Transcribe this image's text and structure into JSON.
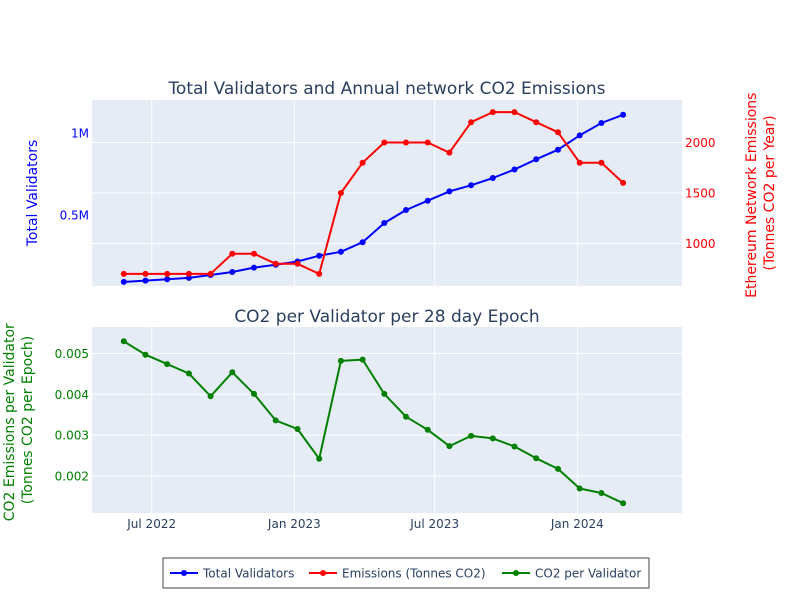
{
  "chart_data": [
    {
      "type": "line",
      "title": "Total Validators and Annual network CO2 Emissions",
      "x_axis": {
        "type": "date",
        "range": [
          "2022-04-15",
          "2024-05-15"
        ],
        "ticks": [
          {
            "value": "2022-07-01",
            "label": "Jul 2022"
          },
          {
            "value": "2023-01-01",
            "label": "Jan 2023"
          },
          {
            "value": "2023-07-01",
            "label": "Jul 2023"
          },
          {
            "value": "2024-01-01",
            "label": "Jan 2024"
          }
        ]
      },
      "y_left": {
        "label": "Total Validators",
        "color": "#0000ff",
        "range": [
          70000,
          1200000
        ],
        "ticks": [
          {
            "value": 500000,
            "label": "0.5M"
          },
          {
            "value": 1000000,
            "label": "1M"
          }
        ]
      },
      "y_right": {
        "label_lines": [
          "Ethereum Network Emissions",
          "(Tonnes CO2 per Year)"
        ],
        "color": "#ff0000",
        "range": [
          580,
          2420
        ],
        "ticks": [
          {
            "value": 1000,
            "label": "1000"
          },
          {
            "value": 1500,
            "label": "1500"
          },
          {
            "value": 2000,
            "label": "2000"
          }
        ]
      },
      "grid": true,
      "series": [
        {
          "name": "Total Validators",
          "axis": "left",
          "color": "#0000ff",
          "x": [
            "2022-05-26",
            "2022-06-23",
            "2022-07-21",
            "2022-08-18",
            "2022-09-15",
            "2022-10-13",
            "2022-11-10",
            "2022-12-08",
            "2023-01-05",
            "2023-02-02",
            "2023-03-02",
            "2023-03-30",
            "2023-04-27",
            "2023-05-25",
            "2023-06-22",
            "2023-07-20",
            "2023-08-17",
            "2023-09-14",
            "2023-10-12",
            "2023-11-09",
            "2023-12-07",
            "2024-01-04",
            "2024-02-01",
            "2024-02-29",
            "2024-03-28"
          ],
          "values": [
            95000,
            103000,
            111000,
            119000,
            137000,
            155000,
            182000,
            199000,
            219000,
            254000,
            278000,
            336000,
            453000,
            532000,
            588000,
            645000,
            682000,
            726000,
            778000,
            840000,
            898000,
            985000,
            1060000,
            1110000,
            null
          ]
        },
        {
          "name": "Emissions (Tonnes CO2)",
          "axis": "right",
          "color": "#ff0000",
          "x": [
            "2022-05-26",
            "2022-06-23",
            "2022-07-21",
            "2022-08-18",
            "2022-09-15",
            "2022-10-13",
            "2022-11-10",
            "2022-12-08",
            "2023-01-05",
            "2023-02-02",
            "2023-03-02",
            "2023-03-30",
            "2023-04-27",
            "2023-05-25",
            "2023-06-22",
            "2023-07-20",
            "2023-08-17",
            "2023-09-14",
            "2023-10-12",
            "2023-11-09",
            "2023-12-07",
            "2024-01-04",
            "2024-02-01",
            "2024-02-29",
            "2024-03-28"
          ],
          "values": [
            700,
            700,
            700,
            700,
            700,
            900,
            900,
            800,
            800,
            700,
            1500,
            1800,
            2000,
            2000,
            2000,
            1900,
            2200,
            2300,
            2300,
            2200,
            2100,
            1800,
            1800,
            1600,
            null
          ]
        }
      ]
    },
    {
      "type": "line",
      "title": "CO2 per Validator per 28 day Epoch",
      "y_left": {
        "label_lines": [
          "CO2 Emissions per Validator",
          "(Tonnes CO2 per Epoch)"
        ],
        "color": "#008000",
        "range": [
          0.00109,
          0.00565
        ],
        "ticks": [
          {
            "value": 0.002,
            "label": "0.002"
          },
          {
            "value": 0.003,
            "label": "0.003"
          },
          {
            "value": 0.004,
            "label": "0.004"
          },
          {
            "value": 0.005,
            "label": "0.005"
          }
        ]
      },
      "grid": true,
      "series": [
        {
          "name": "CO2 per Validator",
          "axis": "left",
          "color": "#008000",
          "x": [
            "2022-05-26",
            "2022-06-23",
            "2022-07-21",
            "2022-08-18",
            "2022-09-15",
            "2022-10-13",
            "2022-11-10",
            "2022-12-08",
            "2023-01-05",
            "2023-02-02",
            "2023-03-02",
            "2023-03-30",
            "2023-04-27",
            "2023-05-25",
            "2023-06-22",
            "2023-07-20",
            "2023-08-17",
            "2023-09-14",
            "2023-10-12",
            "2023-11-09",
            "2023-12-07",
            "2024-01-04",
            "2024-02-01",
            "2024-02-29",
            "2024-03-28"
          ],
          "values": [
            0.0053,
            0.00497,
            0.00474,
            0.00451,
            0.00395,
            0.00454,
            0.00401,
            0.00336,
            0.00315,
            0.00242,
            0.00482,
            0.00485,
            0.00401,
            0.00345,
            0.00313,
            0.00273,
            0.00298,
            0.00292,
            0.00272,
            0.00243,
            0.00217,
            0.00169,
            0.00158,
            0.00133,
            null
          ]
        }
      ]
    }
  ],
  "legend": {
    "placement": "bottom-center",
    "items": [
      {
        "label": "Total Validators",
        "color": "#0000ff"
      },
      {
        "label": "Emissions (Tonnes CO2)",
        "color": "#ff0000"
      },
      {
        "label": "CO2 per Validator",
        "color": "#008000"
      }
    ]
  }
}
